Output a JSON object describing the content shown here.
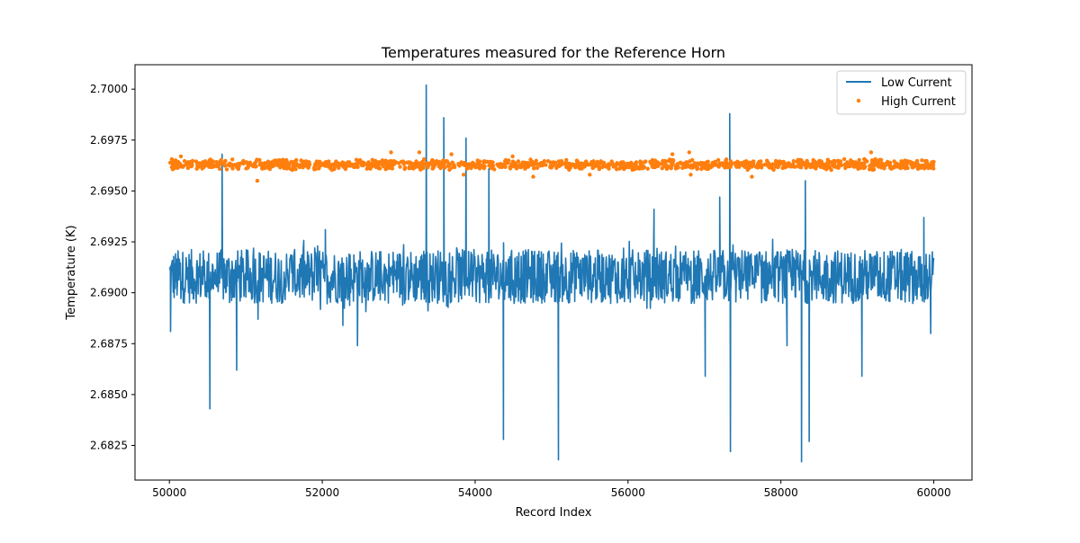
{
  "chart_data": {
    "type": "line+scatter",
    "title": "Temperatures measured for the Reference Horn",
    "xlabel": "Record Index",
    "ylabel": "Temperature (K)",
    "xlim": [
      49550,
      60500
    ],
    "ylim": [
      2.6808,
      2.7012
    ],
    "xticks": [
      50000,
      52000,
      54000,
      56000,
      58000,
      60000
    ],
    "xtick_labels": [
      "50000",
      "52000",
      "54000",
      "56000",
      "58000",
      "60000"
    ],
    "yticks": [
      2.6825,
      2.685,
      2.6875,
      2.69,
      2.6925,
      2.695,
      2.6975,
      2.7
    ],
    "ytick_labels": [
      "2.6825",
      "2.6850",
      "2.6875",
      "2.6900",
      "2.6925",
      "2.6950",
      "2.6975",
      "2.7000"
    ],
    "legend_position": "top-right",
    "series": [
      {
        "name": "Low Current",
        "kind": "line",
        "color": "#1f77b4",
        "x_range": [
          50000,
          60000
        ],
        "baseline": 2.6908,
        "band_low": 2.6895,
        "band_high": 2.6922,
        "spikes": [
          {
            "x": 50015,
            "y": 2.6881
          },
          {
            "x": 50530,
            "y": 2.6843
          },
          {
            "x": 50690,
            "y": 2.6968
          },
          {
            "x": 50880,
            "y": 2.6862
          },
          {
            "x": 51160,
            "y": 2.6887
          },
          {
            "x": 52040,
            "y": 2.6931
          },
          {
            "x": 52270,
            "y": 2.6884
          },
          {
            "x": 52460,
            "y": 2.6874
          },
          {
            "x": 53360,
            "y": 2.7002
          },
          {
            "x": 53590,
            "y": 2.6986
          },
          {
            "x": 53880,
            "y": 2.6976
          },
          {
            "x": 54180,
            "y": 2.6961
          },
          {
            "x": 54370,
            "y": 2.6828
          },
          {
            "x": 55090,
            "y": 2.6818
          },
          {
            "x": 56340,
            "y": 2.6941
          },
          {
            "x": 57010,
            "y": 2.6859
          },
          {
            "x": 57200,
            "y": 2.6947
          },
          {
            "x": 57330,
            "y": 2.6988
          },
          {
            "x": 57340,
            "y": 2.6822
          },
          {
            "x": 58080,
            "y": 2.6874
          },
          {
            "x": 58270,
            "y": 2.6817
          },
          {
            "x": 58320,
            "y": 2.6955
          },
          {
            "x": 58370,
            "y": 2.6827
          },
          {
            "x": 59060,
            "y": 2.6859
          },
          {
            "x": 59870,
            "y": 2.6937
          },
          {
            "x": 59960,
            "y": 2.688
          }
        ]
      },
      {
        "name": "High Current",
        "kind": "scatter",
        "color": "#ff7f0e",
        "x_range": [
          50000,
          60000
        ],
        "baseline": 2.6963,
        "band_low": 2.6961,
        "band_high": 2.6965,
        "outliers": [
          {
            "x": 50150,
            "y": 2.6967
          },
          {
            "x": 51150,
            "y": 2.6955
          },
          {
            "x": 52900,
            "y": 2.6969
          },
          {
            "x": 53270,
            "y": 2.6969
          },
          {
            "x": 53690,
            "y": 2.6968
          },
          {
            "x": 53850,
            "y": 2.6958
          },
          {
            "x": 54490,
            "y": 2.6967
          },
          {
            "x": 54760,
            "y": 2.6957
          },
          {
            "x": 56580,
            "y": 2.6968
          },
          {
            "x": 56800,
            "y": 2.6969
          },
          {
            "x": 56820,
            "y": 2.6958
          },
          {
            "x": 57620,
            "y": 2.6957
          },
          {
            "x": 59180,
            "y": 2.6969
          },
          {
            "x": 55500,
            "y": 2.6958
          }
        ]
      }
    ]
  }
}
